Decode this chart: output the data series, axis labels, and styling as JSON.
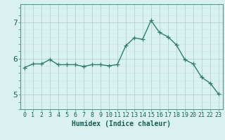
{
  "x": [
    0,
    1,
    2,
    3,
    4,
    5,
    6,
    7,
    8,
    9,
    10,
    11,
    12,
    13,
    14,
    15,
    16,
    17,
    18,
    19,
    20,
    21,
    22,
    23
  ],
  "y": [
    5.75,
    5.85,
    5.85,
    5.97,
    5.83,
    5.83,
    5.83,
    5.78,
    5.83,
    5.83,
    5.8,
    5.83,
    6.35,
    6.57,
    6.53,
    7.05,
    6.72,
    6.6,
    6.38,
    5.97,
    5.85,
    5.48,
    5.32,
    5.02
  ],
  "line_color": "#2e7d6e",
  "marker": "+",
  "marker_size": 4,
  "marker_color": "#2e7d6e",
  "bg_color": "#d9f2ef",
  "grid_color_major": "#aed4ce",
  "grid_color_minor": "#c5e8e3",
  "xlabel": "Humidex (Indice chaleur)",
  "xlabel_fontsize": 7,
  "xlabel_color": "#1a5c52",
  "tick_color": "#1a5c52",
  "tick_fontsize": 6,
  "yticks": [
    5,
    6,
    7
  ],
  "ylim": [
    4.6,
    7.5
  ],
  "xlim": [
    -0.5,
    23.5
  ],
  "spine_color": "#4a9e8e",
  "linewidth": 1.0
}
